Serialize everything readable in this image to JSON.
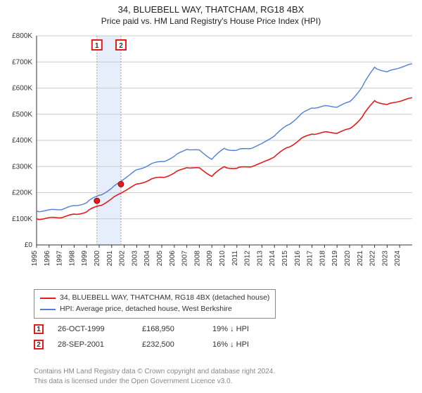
{
  "title": {
    "line1": "34, BLUEBELL WAY, THATCHAM, RG18 4BX",
    "line2": "Price paid vs. HM Land Registry's House Price Index (HPI)"
  },
  "chart": {
    "type": "line",
    "background_color": "#ffffff",
    "grid_color": "#cccccc",
    "axis_color": "#333333",
    "tick_font_size": 10,
    "x": {
      "min": 1995,
      "max": 2025,
      "ticks": [
        1995,
        1996,
        1997,
        1998,
        1999,
        2000,
        2001,
        2002,
        2003,
        2004,
        2005,
        2006,
        2007,
        2008,
        2009,
        2010,
        2011,
        2012,
        2013,
        2014,
        2015,
        2016,
        2017,
        2018,
        2019,
        2020,
        2021,
        2022,
        2023,
        2024
      ]
    },
    "y": {
      "min": 0,
      "max": 800000,
      "tick_step": 100000,
      "tick_labels": [
        "£0",
        "£100K",
        "£200K",
        "£300K",
        "£400K",
        "£500K",
        "£600K",
        "£700K",
        "£800K"
      ]
    },
    "band": {
      "from": 1999.8,
      "to": 2001.75,
      "fill": "#e6eefc"
    },
    "series": [
      {
        "name": "hpi",
        "label": "HPI: Average price, detached house, West Berkshire",
        "color": "#4f7fd6",
        "line_width": 1.4,
        "points": [
          [
            1995,
            130000
          ],
          [
            1996,
            132000
          ],
          [
            1997,
            138000
          ],
          [
            1998,
            148000
          ],
          [
            1999,
            163000
          ],
          [
            2000,
            190000
          ],
          [
            2001,
            215000
          ],
          [
            2002,
            255000
          ],
          [
            2003,
            285000
          ],
          [
            2004,
            308000
          ],
          [
            2005,
            318000
          ],
          [
            2006,
            338000
          ],
          [
            2007,
            368000
          ],
          [
            2008,
            360000
          ],
          [
            2009,
            330000
          ],
          [
            2010,
            368000
          ],
          [
            2011,
            362000
          ],
          [
            2012,
            370000
          ],
          [
            2013,
            385000
          ],
          [
            2014,
            420000
          ],
          [
            2015,
            455000
          ],
          [
            2016,
            495000
          ],
          [
            2017,
            525000
          ],
          [
            2018,
            530000
          ],
          [
            2019,
            530000
          ],
          [
            2020,
            545000
          ],
          [
            2021,
            605000
          ],
          [
            2022,
            680000
          ],
          [
            2023,
            660000
          ],
          [
            2024,
            680000
          ],
          [
            2025,
            690000
          ]
        ]
      },
      {
        "name": "property",
        "label": "34, BLUEBELL WAY, THATCHAM, RG18 4BX (detached house)",
        "color": "#e21b1b",
        "line_width": 1.6,
        "points": [
          [
            1995,
            100000
          ],
          [
            1996,
            102000
          ],
          [
            1997,
            107000
          ],
          [
            1998,
            115000
          ],
          [
            1999,
            128000
          ],
          [
            2000,
            150000
          ],
          [
            2001,
            175000
          ],
          [
            2002,
            208000
          ],
          [
            2003,
            230000
          ],
          [
            2004,
            250000
          ],
          [
            2005,
            258000
          ],
          [
            2006,
            274000
          ],
          [
            2007,
            298000
          ],
          [
            2008,
            292000
          ],
          [
            2009,
            265000
          ],
          [
            2010,
            298000
          ],
          [
            2011,
            293000
          ],
          [
            2012,
            300000
          ],
          [
            2013,
            312000
          ],
          [
            2014,
            340000
          ],
          [
            2015,
            370000
          ],
          [
            2016,
            402000
          ],
          [
            2017,
            425000
          ],
          [
            2018,
            430000
          ],
          [
            2019,
            430000
          ],
          [
            2020,
            442000
          ],
          [
            2021,
            490000
          ],
          [
            2022,
            552000
          ],
          [
            2023,
            535000
          ],
          [
            2024,
            552000
          ],
          [
            2025,
            560000
          ]
        ]
      }
    ],
    "markers": [
      {
        "n": "1",
        "x": 1999.82,
        "y": 168950,
        "box_color": "#e21b1b"
      },
      {
        "n": "2",
        "x": 2001.74,
        "y": 232500,
        "box_color": "#e21b1b"
      }
    ],
    "marker_dot": {
      "fill": "#e21b1b",
      "stroke": "#8a0f0f",
      "r": 4
    },
    "marker_label_box": {
      "border_width": 2,
      "size": 14,
      "text_color": "#333333"
    },
    "marker_stem_color": "#cc9090"
  },
  "legend": {
    "rows": [
      {
        "color": "#e21b1b",
        "label": "34, BLUEBELL WAY, THATCHAM, RG18 4BX (detached house)"
      },
      {
        "color": "#4f7fd6",
        "label": "HPI: Average price, detached house, West Berkshire"
      }
    ]
  },
  "sales": [
    {
      "n": "1",
      "box_color": "#e21b1b",
      "date": "26-OCT-1999",
      "price": "£168,950",
      "diff": "19% ↓ HPI"
    },
    {
      "n": "2",
      "box_color": "#e21b1b",
      "date": "28-SEP-2001",
      "price": "£232,500",
      "diff": "16% ↓ HPI"
    }
  ],
  "footer": {
    "line1": "Contains HM Land Registry data © Crown copyright and database right 2024.",
    "line2": "This data is licensed under the Open Government Licence v3.0."
  }
}
